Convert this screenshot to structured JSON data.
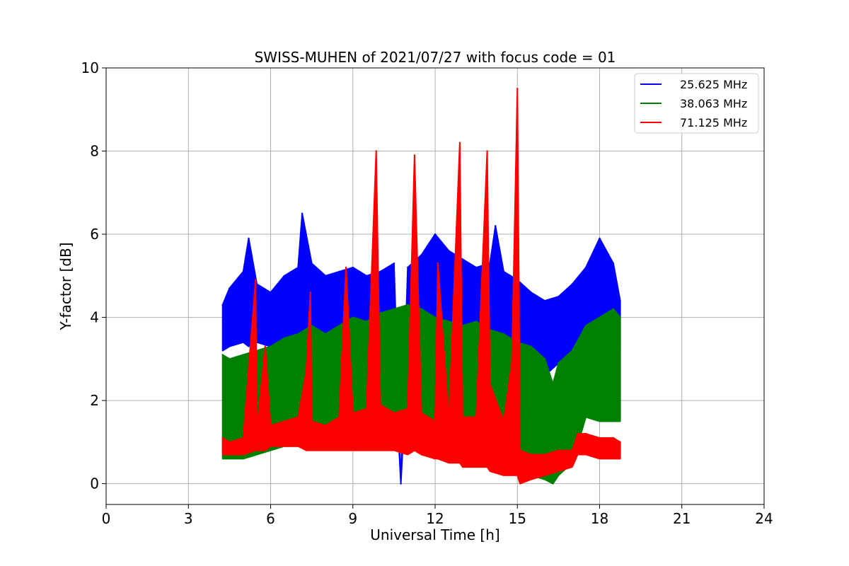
{
  "chart_data": {
    "type": "line",
    "title": "SWISS-MUHEN of 2021/07/27 with focus code = 01",
    "xlabel": "Universal Time [h]",
    "ylabel": "Y-factor [dB]",
    "xlim": [
      0,
      24
    ],
    "ylim": [
      -0.5,
      10
    ],
    "xticks": [
      0,
      3,
      6,
      9,
      12,
      15,
      18,
      21,
      24
    ],
    "yticks": [
      0,
      2,
      4,
      6,
      8,
      10
    ],
    "grid": true,
    "legend_position": "top-right",
    "series": [
      {
        "name": "25.625 MHz",
        "color": "#0000ff",
        "x": [
          4.25,
          4.5,
          5.0,
          5.2,
          5.5,
          6.0,
          6.5,
          7.0,
          7.15,
          7.5,
          8.0,
          8.5,
          9.0,
          9.5,
          10.0,
          10.5,
          10.75,
          11.0,
          11.5,
          12.0,
          12.5,
          13.0,
          13.5,
          14.0,
          14.2,
          14.5,
          15.0,
          15.5,
          16.0,
          16.5,
          17.0,
          17.5,
          18.0,
          18.5,
          18.75
        ],
        "y": [
          4.3,
          4.7,
          5.1,
          5.9,
          4.8,
          4.6,
          5.0,
          5.2,
          6.5,
          5.3,
          5.0,
          5.1,
          5.2,
          5.0,
          5.1,
          5.3,
          0.0,
          5.2,
          5.5,
          6.0,
          5.6,
          5.4,
          5.2,
          5.3,
          6.2,
          5.1,
          4.9,
          4.6,
          4.4,
          4.5,
          4.8,
          5.2,
          5.9,
          5.3,
          4.4
        ],
        "ymin": [
          3.2,
          3.3,
          3.4,
          3.3,
          3.4,
          3.3,
          3.4,
          3.3,
          3.4,
          3.2,
          3.3,
          3.2,
          3.1,
          3.2,
          3.1,
          3.2,
          0.0,
          3.2,
          3.1,
          3.0,
          3.0,
          3.1,
          3.0,
          2.9,
          3.0,
          2.9,
          2.8,
          2.8,
          2.6,
          2.9,
          3.1,
          3.3,
          3.3,
          3.2,
          3.2
        ]
      },
      {
        "name": "38.063 MHz",
        "color": "#008000",
        "x": [
          4.25,
          4.5,
          5.0,
          5.5,
          6.0,
          6.5,
          7.0,
          7.5,
          8.0,
          8.5,
          9.0,
          9.5,
          10.0,
          10.5,
          11.0,
          11.5,
          12.0,
          12.5,
          13.0,
          13.5,
          14.0,
          14.5,
          15.0,
          15.5,
          16.0,
          16.3,
          16.5,
          17.0,
          17.5,
          18.0,
          18.5,
          18.75
        ],
        "y": [
          3.1,
          3.0,
          3.1,
          3.2,
          3.3,
          3.5,
          3.6,
          3.8,
          3.6,
          3.8,
          4.0,
          3.9,
          4.1,
          4.2,
          4.3,
          4.2,
          4.0,
          3.9,
          3.8,
          3.9,
          3.7,
          3.6,
          3.4,
          3.3,
          3.0,
          2.4,
          2.9,
          3.2,
          3.8,
          4.0,
          4.2,
          4.0
        ],
        "ymin": [
          0.6,
          0.6,
          0.6,
          0.7,
          0.8,
          0.9,
          0.9,
          1.0,
          1.0,
          0.9,
          0.9,
          1.0,
          1.0,
          1.0,
          1.0,
          0.9,
          0.8,
          0.8,
          0.7,
          0.7,
          0.6,
          0.5,
          0.4,
          0.2,
          0.1,
          0.0,
          0.2,
          0.5,
          1.6,
          1.5,
          1.5,
          1.5
        ]
      },
      {
        "name": "71.125 MHz",
        "color": "#ff0000",
        "x": [
          4.25,
          4.5,
          5.0,
          5.45,
          5.5,
          5.8,
          6.0,
          6.5,
          7.0,
          7.3,
          7.45,
          7.5,
          8.0,
          8.5,
          8.75,
          9.0,
          9.5,
          9.85,
          10.0,
          10.5,
          11.0,
          11.25,
          11.5,
          12.0,
          12.1,
          12.5,
          12.9,
          13.0,
          13.5,
          13.9,
          14.0,
          14.5,
          14.8,
          15.0,
          15.1,
          15.5,
          16.0,
          16.5,
          17.0,
          17.2,
          17.5,
          18.0,
          18.5,
          18.75
        ],
        "y": [
          1.1,
          1.0,
          1.1,
          4.9,
          1.3,
          3.3,
          1.4,
          1.5,
          1.6,
          2.7,
          4.6,
          1.5,
          1.4,
          1.6,
          5.2,
          1.7,
          1.8,
          8.0,
          1.9,
          1.7,
          1.8,
          7.9,
          1.7,
          1.5,
          5.3,
          1.5,
          8.2,
          1.6,
          1.6,
          8.0,
          2.4,
          1.5,
          2.9,
          9.5,
          0.8,
          0.7,
          0.7,
          0.8,
          0.8,
          1.2,
          1.2,
          1.1,
          1.1,
          1.0
        ],
        "ymin": [
          0.7,
          0.7,
          0.7,
          0.8,
          0.8,
          0.8,
          0.9,
          0.9,
          0.9,
          0.8,
          0.8,
          0.8,
          0.8,
          0.8,
          0.8,
          0.8,
          0.8,
          0.8,
          0.8,
          0.8,
          0.7,
          0.8,
          0.7,
          0.6,
          0.6,
          0.5,
          0.5,
          0.4,
          0.4,
          0.4,
          0.3,
          0.2,
          0.2,
          0.2,
          0.0,
          0.1,
          0.2,
          0.3,
          0.4,
          0.7,
          0.7,
          0.6,
          0.6,
          0.6
        ]
      }
    ]
  }
}
